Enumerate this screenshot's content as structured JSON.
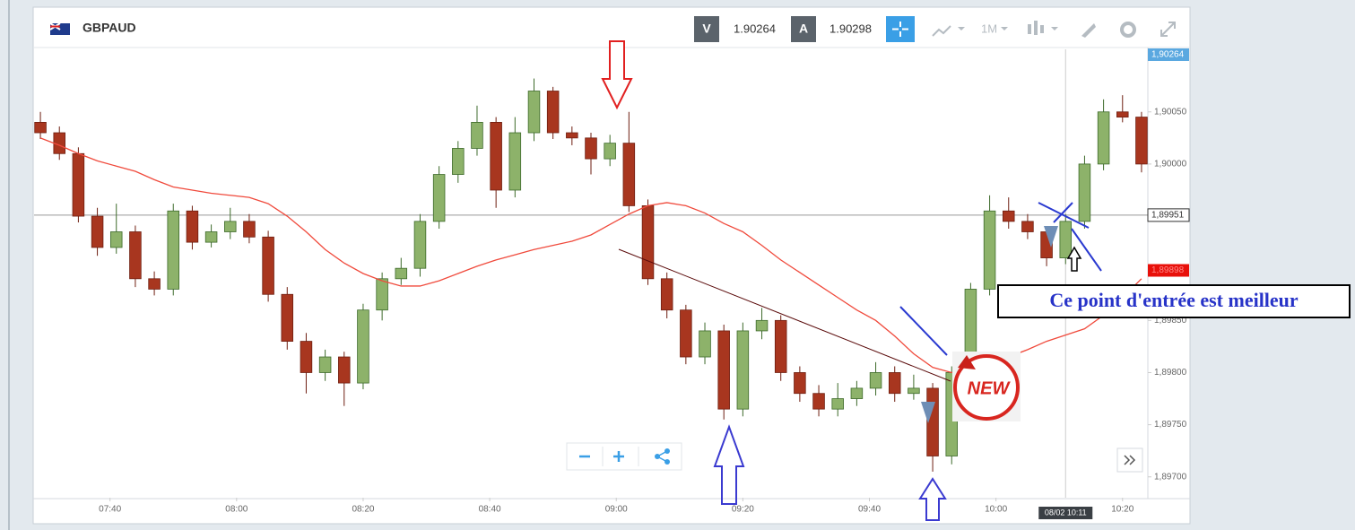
{
  "chart_data": {
    "type": "candlestick",
    "symbol": "GBPAUD",
    "bid_label": "V",
    "bid": 1.90264,
    "ask_label": "A",
    "ask": 1.90298,
    "timeframe": "1M",
    "up_color": "#8db26a",
    "down_color": "#a8361f",
    "x": [
      "07:29",
      "07:32",
      "07:35",
      "07:38",
      "07:41",
      "07:44",
      "07:47",
      "07:50",
      "07:53",
      "07:56",
      "07:59",
      "08:02",
      "08:05",
      "08:08",
      "08:11",
      "08:14",
      "08:17",
      "08:20",
      "08:23",
      "08:26",
      "08:29",
      "08:32",
      "08:35",
      "08:38",
      "08:41",
      "08:44",
      "08:47",
      "08:50",
      "08:53",
      "08:56",
      "08:59",
      "09:02",
      "09:05",
      "09:08",
      "09:11",
      "09:14",
      "09:17",
      "09:20",
      "09:23",
      "09:26",
      "09:29",
      "09:32",
      "09:35",
      "09:38",
      "09:41",
      "09:44",
      "09:47",
      "09:50",
      "09:53",
      "09:56",
      "09:59",
      "10:02",
      "10:05",
      "10:08",
      "10:11",
      "10:14",
      "10:17",
      "10:20",
      "10:23"
    ],
    "open": [
      1.9004,
      1.9003,
      1.9001,
      1.8995,
      1.8992,
      1.89935,
      1.8989,
      1.8988,
      1.89955,
      1.89925,
      1.89935,
      1.89945,
      1.8993,
      1.89875,
      1.8983,
      1.898,
      1.89815,
      1.8979,
      1.8986,
      1.8989,
      1.899,
      1.89945,
      1.8999,
      1.90015,
      1.9004,
      1.89975,
      1.9003,
      1.9007,
      1.9003,
      1.90025,
      1.90005,
      1.9002,
      1.8996,
      1.8989,
      1.8986,
      1.89815,
      1.8984,
      1.89765,
      1.8984,
      1.8985,
      1.898,
      1.8978,
      1.89765,
      1.89775,
      1.89785,
      1.898,
      1.8978,
      1.89785,
      1.8972,
      1.898,
      1.8988,
      1.89955,
      1.89945,
      1.89935,
      1.8991,
      1.89945,
      1.9,
      1.9005,
      1.90045
    ],
    "high": [
      1.9005,
      1.90036,
      1.90016,
      1.89958,
      1.89962,
      1.89941,
      1.89897,
      1.89962,
      1.8996,
      1.89942,
      1.89958,
      1.89952,
      1.89936,
      1.89882,
      1.89838,
      1.89822,
      1.8982,
      1.89866,
      1.89896,
      1.8991,
      1.89952,
      1.89998,
      1.90022,
      1.90056,
      1.90045,
      1.90045,
      1.90082,
      1.90074,
      1.90036,
      1.9003,
      1.90028,
      1.9005,
      1.89966,
      1.89896,
      1.89865,
      1.89848,
      1.89846,
      1.89848,
      1.89862,
      1.89855,
      1.89806,
      1.89788,
      1.8979,
      1.89792,
      1.8981,
      1.89806,
      1.89798,
      1.8979,
      1.89806,
      1.89886,
      1.8997,
      1.89968,
      1.89952,
      1.8994,
      1.89952,
      1.90008,
      1.90062,
      1.90066,
      1.9005
    ],
    "low": [
      1.90024,
      1.90004,
      1.89944,
      1.89912,
      1.89914,
      1.89882,
      1.89874,
      1.89874,
      1.89918,
      1.8992,
      1.89928,
      1.89924,
      1.89868,
      1.89822,
      1.8978,
      1.89792,
      1.89768,
      1.89784,
      1.8985,
      1.89884,
      1.89892,
      1.89938,
      1.89982,
      1.90008,
      1.89958,
      1.89968,
      1.90022,
      1.90024,
      1.90018,
      1.8999,
      1.89998,
      1.89954,
      1.89884,
      1.89852,
      1.89808,
      1.89808,
      1.89755,
      1.89758,
      1.89832,
      1.89792,
      1.89772,
      1.89758,
      1.89758,
      1.89768,
      1.89778,
      1.89772,
      1.89774,
      1.89705,
      1.89712,
      1.89794,
      1.89874,
      1.89938,
      1.89928,
      1.89902,
      1.89904,
      1.89938,
      1.89994,
      1.9004,
      1.89992
    ],
    "close": [
      1.9003,
      1.9001,
      1.8995,
      1.8992,
      1.89935,
      1.8989,
      1.8988,
      1.89955,
      1.89925,
      1.89935,
      1.89945,
      1.8993,
      1.89875,
      1.8983,
      1.898,
      1.89815,
      1.8979,
      1.8986,
      1.8989,
      1.899,
      1.89945,
      1.8999,
      1.90015,
      1.9004,
      1.89975,
      1.9003,
      1.9007,
      1.9003,
      1.90025,
      1.90005,
      1.9002,
      1.8996,
      1.8989,
      1.8986,
      1.89815,
      1.8984,
      1.89765,
      1.8984,
      1.8985,
      1.898,
      1.8978,
      1.89765,
      1.89775,
      1.89785,
      1.898,
      1.8978,
      1.89785,
      1.8972,
      1.898,
      1.8988,
      1.89955,
      1.89945,
      1.89935,
      1.8991,
      1.89945,
      1.9,
      1.9005,
      1.90045,
      1.9
    ],
    "moving_average": {
      "color": "#f04a3c",
      "values": [
        1.90025,
        1.90018,
        1.9001,
        1.90003,
        1.89998,
        1.89993,
        1.89985,
        1.89978,
        1.89975,
        1.89972,
        1.8997,
        1.89968,
        1.89962,
        1.8995,
        1.89935,
        1.89918,
        1.89905,
        1.89895,
        1.89888,
        1.89883,
        1.89883,
        1.89888,
        1.89895,
        1.89902,
        1.89908,
        1.89913,
        1.89918,
        1.89922,
        1.89926,
        1.89932,
        1.89942,
        1.89952,
        1.8996,
        1.89963,
        1.8996,
        1.89953,
        1.89943,
        1.89935,
        1.89922,
        1.89908,
        1.89896,
        1.89884,
        1.89872,
        1.8986,
        1.8985,
        1.89835,
        1.89818,
        1.89805,
        1.898,
        1.89805,
        1.8981,
        1.89815,
        1.89822,
        1.8983,
        1.89836,
        1.89842,
        1.89855,
        1.89872,
        1.8989
      ]
    },
    "xlim": [
      "07:28",
      "10:24"
    ],
    "xticks": [
      "07:40",
      "08:00",
      "08:20",
      "08:40",
      "09:00",
      "09:20",
      "09:40",
      "10:00",
      "10:20"
    ],
    "ylim": [
      1.8968,
      1.9011
    ],
    "yticks": [
      {
        "value": 1.897,
        "label": "1,89700"
      },
      {
        "value": 1.8975,
        "label": "1,89750"
      },
      {
        "value": 1.898,
        "label": "1,89800"
      },
      {
        "value": 1.8985,
        "label": "1,89850"
      },
      {
        "value": 1.9,
        "label": "1,90000"
      },
      {
        "value": 1.9005,
        "label": "1,90050"
      }
    ],
    "grid": false,
    "top_price_label": {
      "value": 1.90264,
      "label": "1,90264"
    },
    "ma_price_label": {
      "value": 1.89898,
      "label": "1,89898"
    },
    "crosshair": {
      "value": 1.89951,
      "label": "1,89951",
      "time": "10:11",
      "time_label": "08/02 10:11"
    },
    "sticker": "NEW",
    "annotation": "Ce point d'entrée est meilleur"
  }
}
